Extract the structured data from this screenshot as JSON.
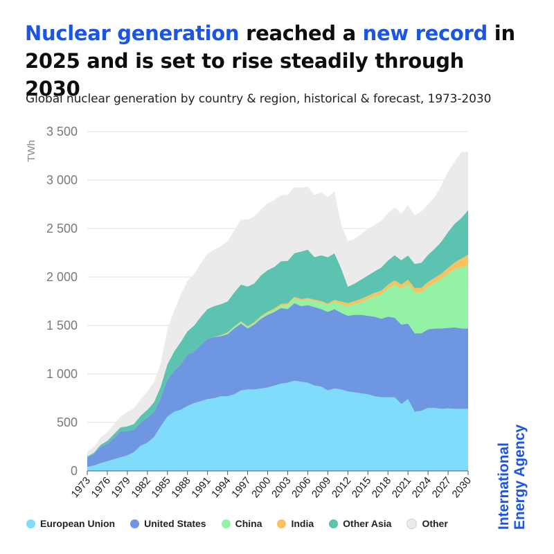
{
  "headline": {
    "part1": "Nuclear generation",
    "part2": " reached a ",
    "part3": "new record",
    "part4": " in 2025 and is set to rise steadily through 2030"
  },
  "subtitle": "Global nuclear generation by country & region, historical & forecast, 1973-2030",
  "brand": {
    "line1": "International",
    "line2": "Energy Agency"
  },
  "colors": {
    "accent": "#1a55e3",
    "European Union": "#7fdcfb",
    "United States": "#6f96e0",
    "China": "#94f2a4",
    "India": "#f8c261",
    "Other Asia": "#5cc3b0",
    "Other": "#ebebeb"
  },
  "chart_data": {
    "type": "area",
    "stacked": true,
    "ylabel": "TWh",
    "ylim": [
      0,
      3500
    ],
    "yticks": [
      "0",
      "500",
      "1 000",
      "1 500",
      "2 000",
      "2 500",
      "3 000",
      "3 500"
    ],
    "ytick_values": [
      0,
      500,
      1000,
      1500,
      2000,
      2500,
      3000,
      3500
    ],
    "xticks": [
      "1973",
      "1976",
      "1979",
      "1982",
      "1985",
      "1988",
      "1991",
      "1994",
      "1997",
      "2000",
      "2003",
      "2006",
      "2009",
      "2012",
      "2015",
      "2018",
      "2021",
      "2024",
      "2027",
      "2030"
    ],
    "grid": true,
    "legend_position": "bottom",
    "x": [
      1973,
      1974,
      1975,
      1976,
      1977,
      1978,
      1979,
      1980,
      1981,
      1982,
      1983,
      1984,
      1985,
      1986,
      1987,
      1988,
      1989,
      1990,
      1991,
      1992,
      1993,
      1994,
      1995,
      1996,
      1997,
      1998,
      1999,
      2000,
      2001,
      2002,
      2003,
      2004,
      2005,
      2006,
      2007,
      2008,
      2009,
      2010,
      2011,
      2012,
      2013,
      2014,
      2015,
      2016,
      2017,
      2018,
      2019,
      2020,
      2021,
      2022,
      2023,
      2024,
      2025,
      2026,
      2027,
      2028,
      2029,
      2030
    ],
    "series": [
      {
        "name": "European Union",
        "values": [
          40,
          55,
          80,
          100,
          120,
          140,
          160,
          195,
          260,
          290,
          350,
          460,
          560,
          610,
          630,
          670,
          700,
          720,
          740,
          750,
          770,
          770,
          790,
          830,
          840,
          840,
          850,
          860,
          880,
          900,
          910,
          930,
          920,
          910,
          880,
          870,
          830,
          850,
          840,
          820,
          810,
          800,
          790,
          770,
          760,
          760,
          760,
          690,
          740,
          610,
          620,
          650,
          650,
          640,
          645,
          640,
          640,
          640
        ]
      },
      {
        "name": "United States",
        "values": [
          100,
          120,
          170,
          180,
          220,
          270,
          250,
          230,
          240,
          260,
          260,
          290,
          380,
          420,
          470,
          530,
          530,
          580,
          620,
          630,
          620,
          640,
          680,
          690,
          630,
          670,
          720,
          750,
          760,
          780,
          760,
          800,
          780,
          800,
          810,
          800,
          810,
          820,
          790,
          780,
          800,
          810,
          810,
          820,
          810,
          830,
          820,
          820,
          780,
          810,
          800,
          810,
          820,
          830,
          830,
          840,
          830,
          830
        ]
      },
      {
        "name": "China",
        "values": [
          0,
          0,
          0,
          0,
          0,
          0,
          0,
          0,
          0,
          0,
          0,
          0,
          0,
          0,
          0,
          0,
          0,
          0,
          0,
          0,
          5,
          10,
          12,
          14,
          14,
          14,
          15,
          16,
          17,
          25,
          40,
          50,
          55,
          55,
          60,
          68,
          70,
          74,
          87,
          98,
          110,
          130,
          170,
          210,
          250,
          290,
          340,
          370,
          410,
          420,
          420,
          440,
          470,
          510,
          560,
          600,
          630,
          650
        ]
      },
      {
        "name": "India",
        "values": [
          0,
          0,
          0,
          0,
          0,
          0,
          0,
          0,
          0,
          0,
          0,
          0,
          0,
          0,
          0,
          0,
          0,
          0,
          0,
          0,
          5,
          8,
          8,
          8,
          8,
          10,
          12,
          15,
          17,
          18,
          17,
          16,
          17,
          17,
          16,
          15,
          15,
          20,
          30,
          32,
          32,
          34,
          36,
          38,
          38,
          40,
          45,
          43,
          42,
          46,
          47,
          49,
          52,
          55,
          60,
          70,
          90,
          110
        ]
      },
      {
        "name": "Other Asia",
        "values": [
          10,
          12,
          20,
          30,
          40,
          40,
          50,
          60,
          70,
          80,
          100,
          120,
          160,
          200,
          230,
          240,
          270,
          290,
          310,
          320,
          320,
          320,
          350,
          380,
          410,
          400,
          420,
          430,
          430,
          440,
          440,
          450,
          490,
          500,
          440,
          470,
          480,
          480,
          340,
          170,
          180,
          200,
          210,
          220,
          240,
          250,
          260,
          250,
          250,
          250,
          260,
          280,
          300,
          330,
          370,
          400,
          420,
          460
        ]
      },
      {
        "name": "Other",
        "values": [
          50,
          60,
          75,
          90,
          100,
          110,
          150,
          160,
          170,
          185,
          210,
          240,
          360,
          420,
          490,
          520,
          530,
          550,
          570,
          580,
          600,
          620,
          640,
          670,
          690,
          690,
          680,
          690,
          690,
          680,
          680,
          680,
          660,
          650,
          640,
          650,
          620,
          640,
          450,
          470,
          460,
          470,
          480,
          480,
          480,
          490,
          490,
          480,
          520,
          500,
          530,
          520,
          530,
          580,
          625,
          640,
          680,
          600
        ]
      }
    ]
  }
}
